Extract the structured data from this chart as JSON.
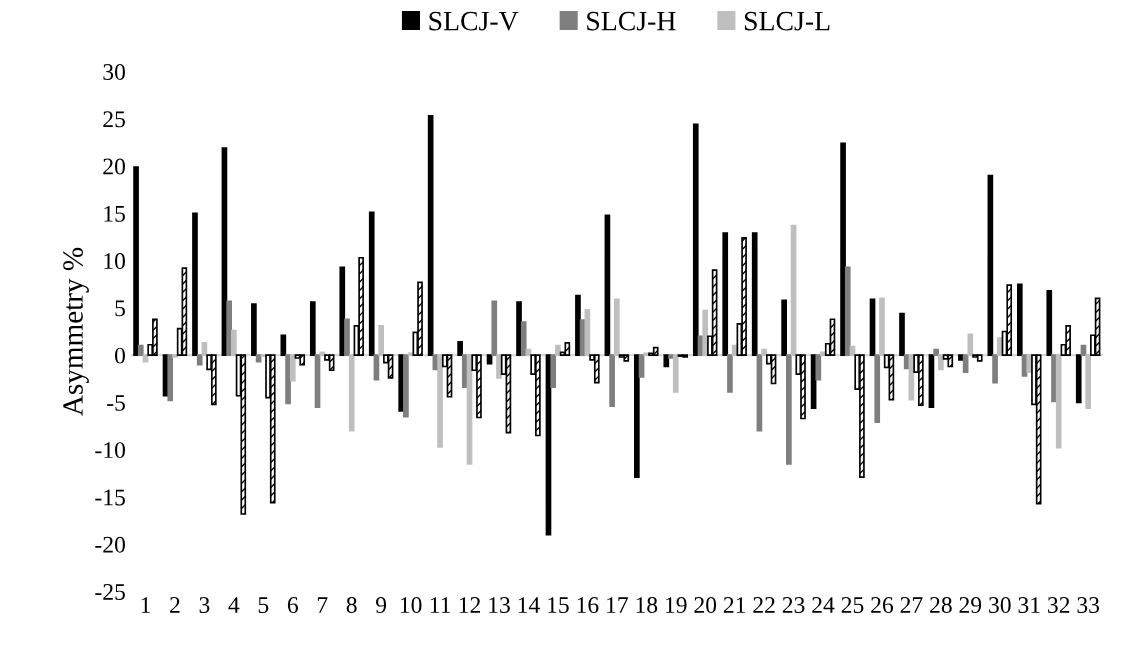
{
  "chart_data": {
    "type": "bar",
    "ylabel": "Asymmetry %",
    "categories": [
      "1",
      "2",
      "3",
      "4",
      "5",
      "6",
      "7",
      "8",
      "9",
      "10",
      "11",
      "12",
      "13",
      "14",
      "15",
      "16",
      "17",
      "18",
      "19",
      "20",
      "21",
      "22",
      "23",
      "24",
      "25",
      "26",
      "27",
      "28",
      "29",
      "30",
      "31",
      "32",
      "33"
    ],
    "series": [
      {
        "name": "SLCJ-V",
        "color": "#000000",
        "values": [
          19.9,
          -4.3,
          15.0,
          21.9,
          5.4,
          2.1,
          5.6,
          9.3,
          15.1,
          -5.9,
          25.3,
          1.4,
          -0.9,
          5.6,
          -19.0,
          6.3,
          14.8,
          -12.9,
          -1.2,
          24.4,
          12.9,
          12.9,
          5.8,
          -5.6,
          22.4,
          5.9,
          4.4,
          -5.5,
          -0.5,
          19.0,
          7.5,
          6.8,
          -5.0
        ]
      },
      {
        "name": "SLCJ-H",
        "color": "#7f7f7f",
        "values": [
          1.0,
          -4.8,
          -1.0,
          5.7,
          -0.7,
          -5.1,
          -5.5,
          3.8,
          -2.6,
          -6.5,
          -1.5,
          -3.4,
          5.7,
          3.5,
          -3.4,
          3.7,
          -5.4,
          -2.3,
          -0.3,
          2.0,
          -3.9,
          -8.0,
          -11.5,
          -2.6,
          9.3,
          -7.1,
          -1.4,
          0.6,
          -1.8,
          -2.9,
          -2.2,
          -4.9,
          1.0
        ]
      },
      {
        "name": "SLCJ-L",
        "color": "#bfbfbf",
        "values": [
          -0.7,
          -0.2,
          1.3,
          2.6,
          -0.1,
          -2.7,
          0.3,
          -8.0,
          3.1,
          0.2,
          -9.7,
          -11.5,
          -2.4,
          0.6,
          1.0,
          4.8,
          5.9,
          0.2,
          -3.9,
          4.7,
          1.0,
          0.6,
          13.7,
          0.3,
          0.9,
          6.0,
          -4.7,
          -1.5,
          2.2,
          1.8,
          -1.8,
          -9.8,
          -5.6
        ]
      },
      {
        "color": "#ffffff",
        "values": [
          1.1,
          2.8,
          -1.5,
          -4.3,
          -4.5,
          -0.3,
          -0.5,
          3.1,
          -0.8,
          2.4,
          -1.2,
          -1.6,
          -2.0,
          -2.0,
          0.3,
          -0.5,
          -0.2,
          0.2,
          -0.1,
          2.0,
          3.3,
          -0.9,
          -2.0,
          1.2,
          -3.6,
          -1.3,
          -1.8,
          -0.4,
          -0.2,
          2.5,
          -5.2,
          1.1,
          2.1
        ]
      },
      {
        "color": "#000000",
        "values": [
          3.8,
          9.2,
          -5.2,
          -16.8,
          -15.6,
          -1.0,
          -1.6,
          10.3,
          -2.4,
          7.7,
          -4.4,
          -6.6,
          -8.2,
          -8.5,
          1.3,
          -2.9,
          -0.6,
          0.8,
          -0.2,
          9.0,
          12.4,
          -3.0,
          -6.7,
          3.8,
          -12.9,
          -4.7,
          -5.3,
          -1.2,
          -0.6,
          7.4,
          -15.7,
          3.1,
          6.0
        ]
      }
    ],
    "ylim": [
      -25,
      30
    ],
    "yticks": [
      -25,
      -20,
      -15,
      -10,
      -5,
      0,
      5,
      10,
      15,
      20,
      25,
      30
    ],
    "ref_lines": [
      {
        "axis": "y",
        "value": 0,
        "color": "#d9d9d9"
      }
    ],
    "legend": "top",
    "grid": false
  }
}
